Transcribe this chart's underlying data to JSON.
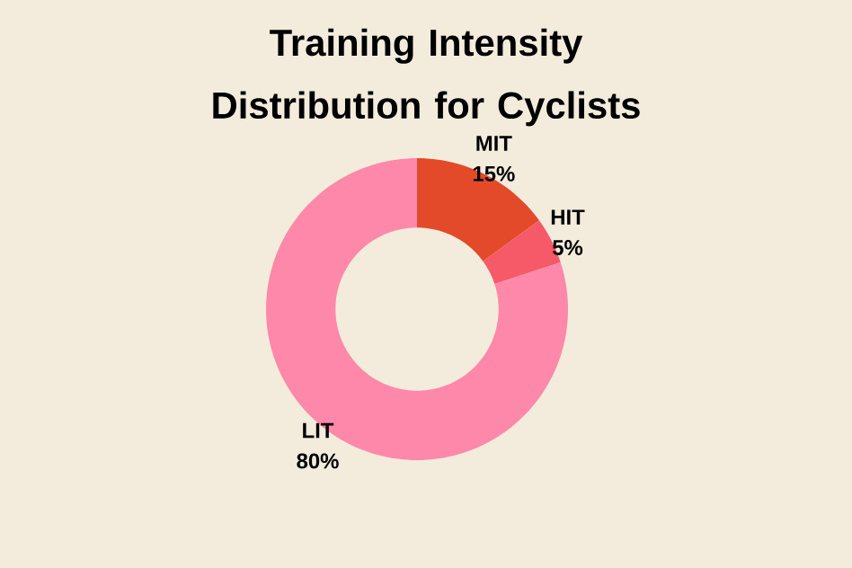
{
  "chart_data": {
    "type": "donut",
    "title": "Training Intensity Distribution for Cyclists",
    "categories": [
      "MIT",
      "HIT",
      "LIT"
    ],
    "values": [
      15,
      5,
      80
    ],
    "value_labels": [
      "15%",
      "5%",
      "80%"
    ],
    "colors": [
      "#e34a2a",
      "#f65a68",
      "#fd88aa"
    ]
  }
}
